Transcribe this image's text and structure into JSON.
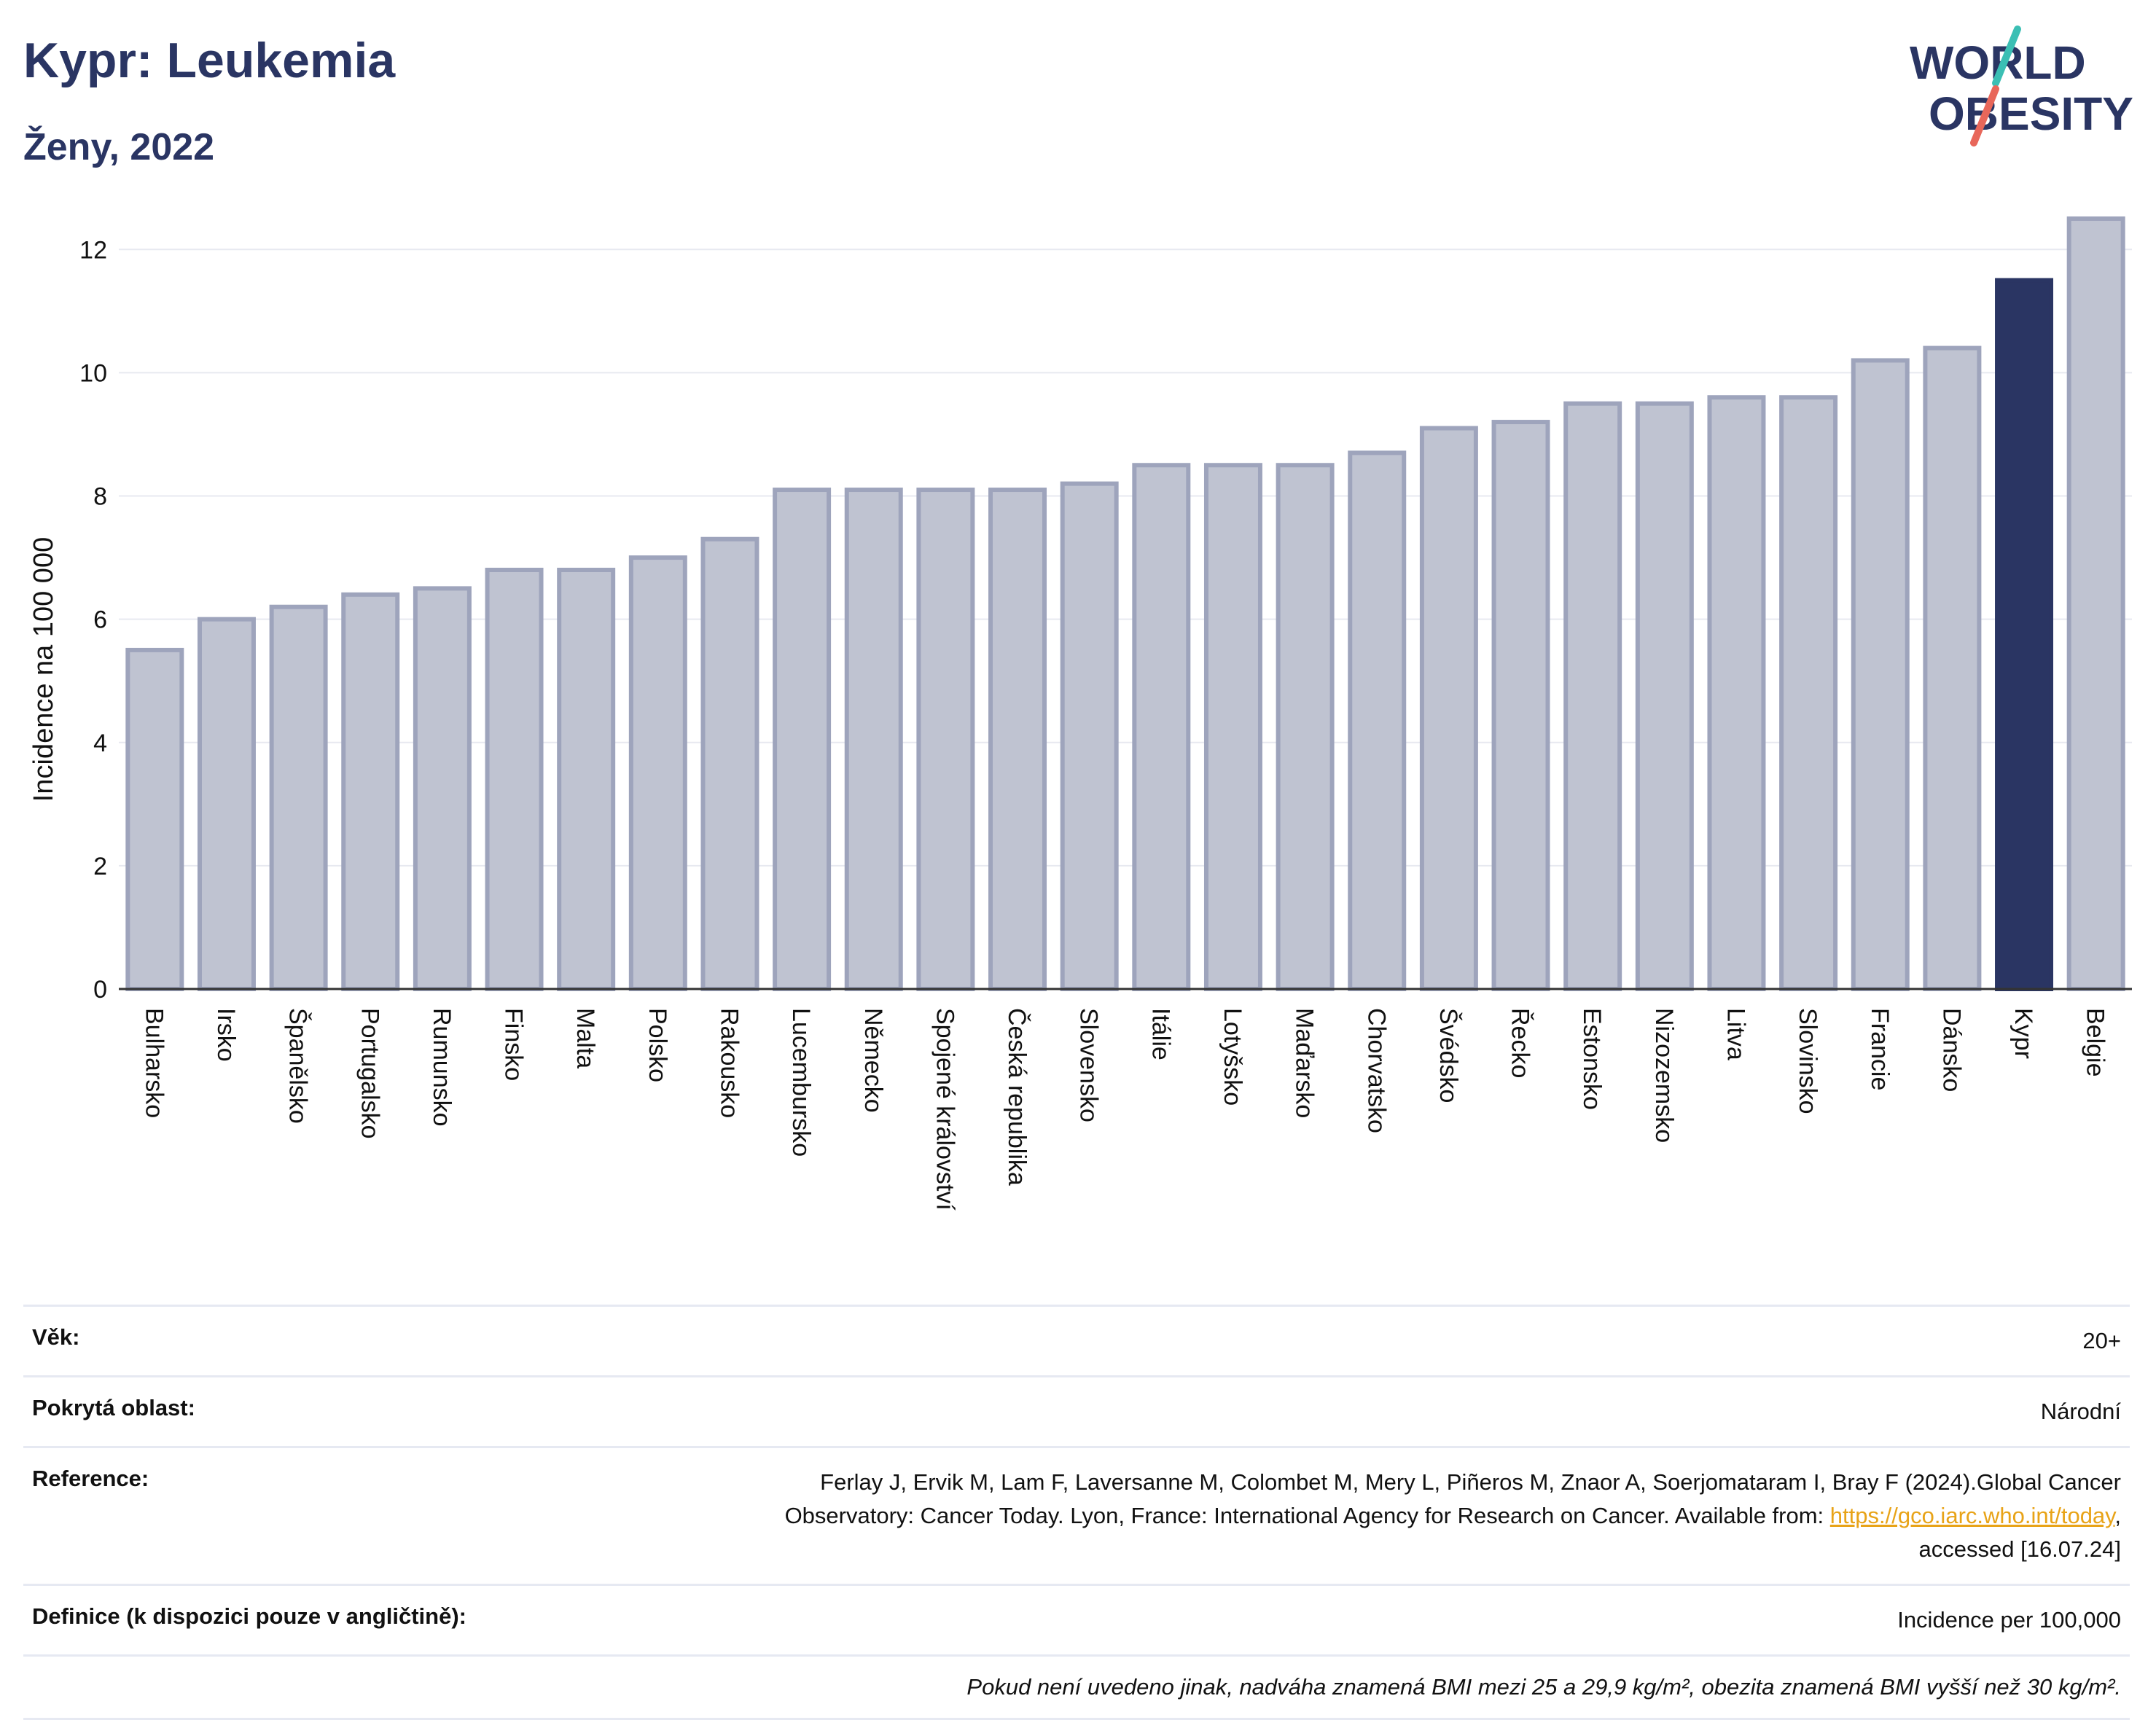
{
  "header": {
    "title": "Kypr: Leukemia",
    "subtitle": "Ženy, 2022"
  },
  "logo": {
    "line1": "WORLD",
    "line2": "OBESITY",
    "slash_colors": [
      "#3bbfb4",
      "#e8675a"
    ]
  },
  "colors": {
    "bar": "#bfc3d1",
    "bar_border": "#9ea4bc",
    "highlight": "#2a3563",
    "grid": "#e7e9f0"
  },
  "chart_data": {
    "type": "bar",
    "ylabel": "Incidence na 100 000",
    "ylim": [
      0,
      12.5
    ],
    "yticks": [
      0,
      2,
      4,
      6,
      8,
      10,
      12
    ],
    "grid": true,
    "highlight": "Kypr",
    "categories": [
      "Bulharsko",
      "Irsko",
      "Španělsko",
      "Portugalsko",
      "Rumunsko",
      "Finsko",
      "Malta",
      "Polsko",
      "Rakousko",
      "Lucembursko",
      "Německo",
      "Spojené království",
      "Česká republika",
      "Slovensko",
      "Itálie",
      "Lotyšsko",
      "Maďarsko",
      "Chorvatsko",
      "Švédsko",
      "Řecko",
      "Estonsko",
      "Nizozemsko",
      "Litva",
      "Slovinsko",
      "Francie",
      "Dánsko",
      "Kypr",
      "Belgie"
    ],
    "values": [
      5.5,
      6.0,
      6.2,
      6.4,
      6.5,
      6.8,
      6.8,
      7.0,
      7.3,
      8.1,
      8.1,
      8.1,
      8.1,
      8.2,
      8.5,
      8.5,
      8.5,
      8.7,
      9.1,
      9.2,
      9.5,
      9.5,
      9.6,
      9.6,
      10.2,
      10.4,
      11.5,
      12.5
    ]
  },
  "info": {
    "age_label": "Věk:",
    "age_value": "20+",
    "area_label": "Pokrytá oblast:",
    "area_value": "Národní",
    "reference_label": "Reference:",
    "reference_line1": "Ferlay J, Ervik M, Lam F, Laversanne M, Colombet M, Mery L, Piñeros M, Znaor A, Soerjomataram I, Bray F (2024).Global Cancer",
    "reference_line2": "Observatory: Cancer Today. Lyon, France: International Agency for Research on Cancer. Available from: ",
    "reference_link": "https://gco.iarc.who.int/today",
    "reference_line2_end": ",",
    "reference_line3": "accessed [16.07.24]",
    "definition_label": "Definice (k dispozici pouze v angličtině):",
    "definition_value": "Incidence per 100,000",
    "note": "Pokud není uvedeno jinak, nadváha znamená BMI mezi 25 a 29,9 kg/m², obezita znamená BMI vyšší než 30 kg/m²."
  }
}
